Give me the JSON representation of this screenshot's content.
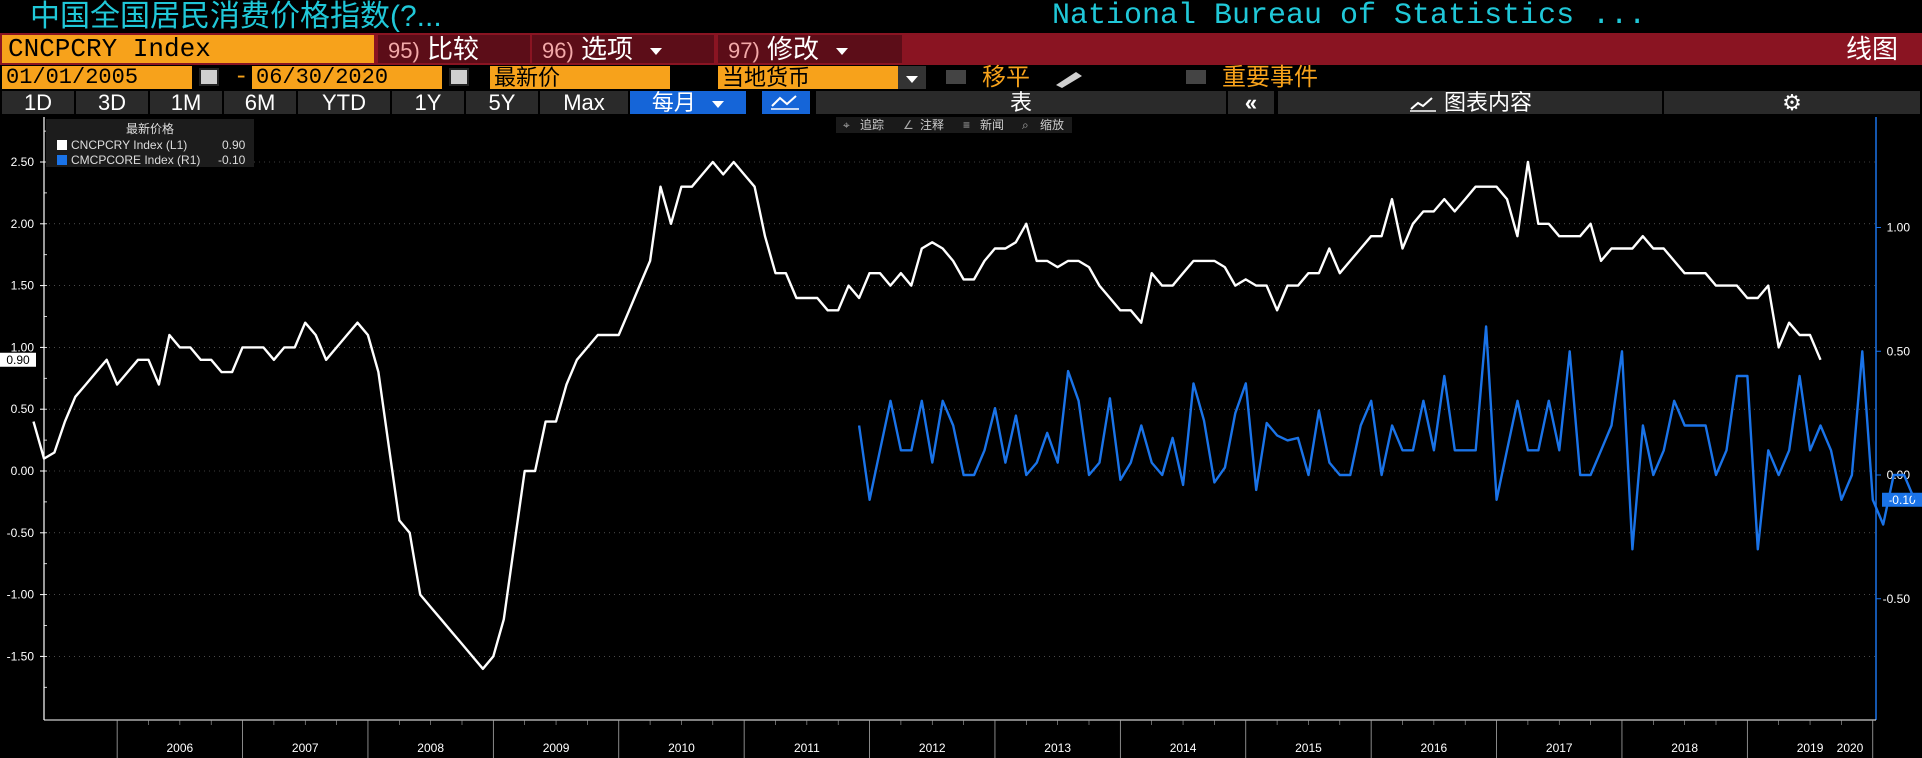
{
  "title_left": "中国全国居民消费价格指数(?...",
  "title_right": "National Bureau of Statistics ...",
  "ticker": "CNCPCRY Index",
  "menu": [
    {
      "num": "95)",
      "label": "比较"
    },
    {
      "num": "96)",
      "label": "选项"
    },
    {
      "num": "97)",
      "label": "修改"
    }
  ],
  "chart_type_label": "线图",
  "date_start": "01/01/2005",
  "date_sep": "-",
  "date_end": "06/30/2020",
  "price_field": "最新价",
  "currency": "当地货币",
  "shift_label": "移平",
  "events_label": "重要事件",
  "ranges": [
    "1D",
    "3D",
    "1M",
    "6M",
    "YTD",
    "1Y",
    "5Y",
    "Max"
  ],
  "frequency": "每月",
  "table_label": "表",
  "back_label": "«",
  "chart_content_label": "图表内容",
  "chart_tools": [
    "追踪",
    "注释",
    "新闻",
    "缩放"
  ],
  "colors": {
    "bg": "#000000",
    "orange": "#f7a21b",
    "menu_red": "#8a1422",
    "title_cyan": "#20c8d8",
    "series1": "#ffffff",
    "series2": "#1a73e8"
  },
  "chart_data": {
    "type": "line",
    "legend_title": "最新价格",
    "legend_position": "top-left",
    "x_tick_labels": [
      "2006",
      "2007",
      "2008",
      "2009",
      "2010",
      "2011",
      "2012",
      "2013",
      "2014",
      "2015",
      "2016",
      "2017",
      "2018",
      "2019",
      "2020"
    ],
    "left_axis": {
      "ticks": [
        "2.50",
        "2.00",
        "1.50",
        "1.00",
        "0.50",
        "0.00",
        "-0.50",
        "-1.00",
        "-1.50"
      ],
      "range": [
        -2.0,
        2.8
      ]
    },
    "right_axis": {
      "ticks": [
        "1.00",
        "0.50",
        "0.00",
        "-0.50"
      ],
      "range": [
        -1.0,
        1.4
      ]
    },
    "series": [
      {
        "name": "CNCPCRY Index  (L1)",
        "last_value": "0.90",
        "axis": "left",
        "color": "#ffffff",
        "start": "2005-05",
        "values": [
          0.4,
          0.1,
          0.15,
          0.4,
          0.6,
          0.7,
          0.8,
          0.9,
          0.7,
          0.8,
          0.9,
          0.9,
          0.7,
          1.1,
          1.0,
          1.0,
          0.9,
          0.9,
          0.8,
          0.8,
          1.0,
          1.0,
          1.0,
          0.9,
          1.0,
          1.0,
          1.2,
          1.1,
          0.9,
          1.0,
          1.1,
          1.2,
          1.1,
          0.8,
          0.2,
          -0.4,
          -0.5,
          -1.0,
          -1.1,
          -1.2,
          -1.3,
          -1.4,
          -1.5,
          -1.6,
          -1.5,
          -1.2,
          -0.6,
          0.0,
          0.0,
          0.4,
          0.4,
          0.7,
          0.9,
          1.0,
          1.1,
          1.1,
          1.1,
          1.3,
          1.5,
          1.7,
          2.3,
          2.0,
          2.3,
          2.3,
          2.4,
          2.5,
          2.4,
          2.5,
          2.4,
          2.3,
          1.9,
          1.6,
          1.6,
          1.4,
          1.4,
          1.4,
          1.3,
          1.3,
          1.5,
          1.4,
          1.6,
          1.6,
          1.5,
          1.6,
          1.5,
          1.8,
          1.85,
          1.8,
          1.7,
          1.55,
          1.55,
          1.7,
          1.8,
          1.8,
          1.85,
          2.0,
          1.7,
          1.7,
          1.65,
          1.7,
          1.7,
          1.65,
          1.5,
          1.4,
          1.3,
          1.3,
          1.2,
          1.6,
          1.5,
          1.5,
          1.6,
          1.7,
          1.7,
          1.7,
          1.65,
          1.5,
          1.55,
          1.5,
          1.5,
          1.3,
          1.5,
          1.5,
          1.6,
          1.6,
          1.8,
          1.6,
          1.7,
          1.8,
          1.9,
          1.9,
          2.2,
          1.8,
          2.0,
          2.1,
          2.1,
          2.2,
          2.1,
          2.2,
          2.3,
          2.3,
          2.3,
          2.2,
          1.9,
          2.5,
          2.0,
          2.0,
          1.9,
          1.9,
          1.9,
          2.0,
          1.7,
          1.8,
          1.8,
          1.8,
          1.9,
          1.8,
          1.8,
          1.7,
          1.6,
          1.6,
          1.6,
          1.5,
          1.5,
          1.5,
          1.4,
          1.4,
          1.5,
          1.0,
          1.2,
          1.1,
          1.1,
          0.9
        ]
      },
      {
        "name": "CMCPCORE Index  (R1)",
        "last_value": "-0.10",
        "axis": "right",
        "color": "#1a73e8",
        "start": "2011-12",
        "values": [
          0.2,
          -0.1,
          0.1,
          0.3,
          0.1,
          0.1,
          0.3,
          0.05,
          0.3,
          0.2,
          0.0,
          0.0,
          0.1,
          0.27,
          0.05,
          0.24,
          0.0,
          0.05,
          0.17,
          0.05,
          0.42,
          0.3,
          0.0,
          0.05,
          0.31,
          -0.02,
          0.05,
          0.2,
          0.05,
          0.0,
          0.15,
          -0.04,
          0.37,
          0.22,
          -0.03,
          0.03,
          0.25,
          0.37,
          -0.06,
          0.21,
          0.16,
          0.14,
          0.15,
          0.0,
          0.26,
          0.05,
          0.0,
          0.0,
          0.2,
          0.3,
          0.0,
          0.2,
          0.1,
          0.1,
          0.3,
          0.1,
          0.4,
          0.1,
          0.1,
          0.1,
          0.6,
          -0.1,
          0.1,
          0.3,
          0.1,
          0.1,
          0.3,
          0.1,
          0.5,
          0.0,
          0.0,
          0.1,
          0.2,
          0.5,
          -0.3,
          0.2,
          0.0,
          0.1,
          0.3,
          0.2,
          0.2,
          0.2,
          0.0,
          0.1,
          0.4,
          0.4,
          -0.3,
          0.1,
          0.0,
          0.1,
          0.4,
          0.1,
          0.2,
          0.1,
          -0.1,
          0.0,
          0.5,
          -0.1,
          -0.2,
          0.0,
          0.0,
          -0.1
        ]
      }
    ]
  }
}
